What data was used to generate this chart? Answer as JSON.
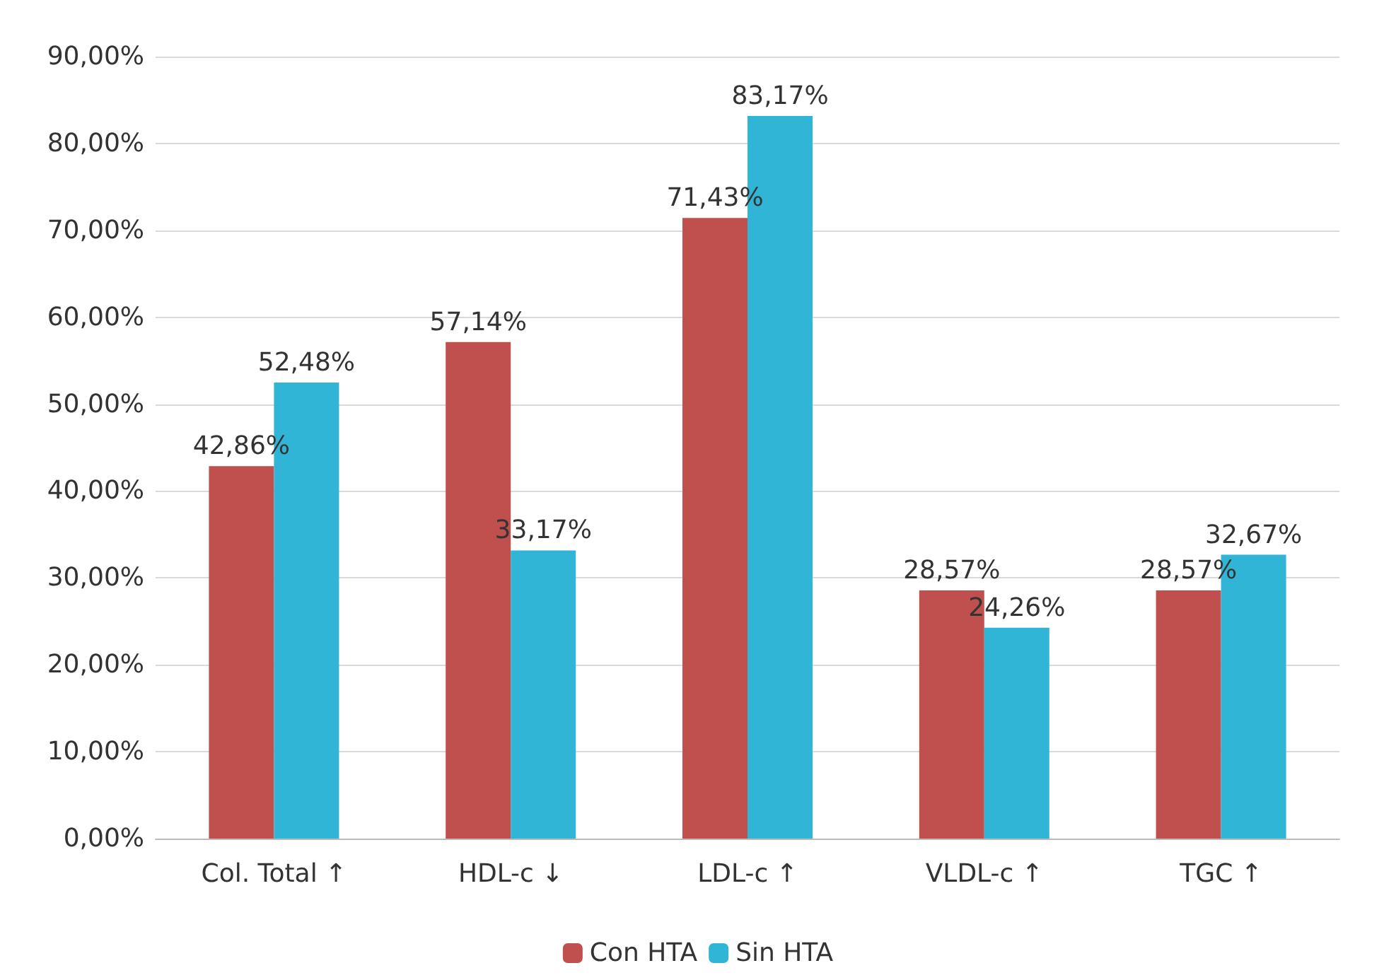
{
  "chart_data": {
    "type": "bar",
    "categories": [
      "Col. Total ↑",
      "HDL-c ↓",
      "LDL-c ↑",
      "VLDL-c ↑",
      "TGC ↑"
    ],
    "series": [
      {
        "name": "Con HTA",
        "color": "#c0504d",
        "values": [
          42.86,
          57.14,
          71.43,
          28.57,
          28.57
        ],
        "value_labels": [
          "42,86%",
          "57,14%",
          "71,43%",
          "28,57%",
          "28,57%"
        ]
      },
      {
        "name": "Sin HTA",
        "color": "#31b5d6",
        "values": [
          52.48,
          33.17,
          83.17,
          24.26,
          32.67
        ],
        "value_labels": [
          "52,48%",
          "33,17%",
          "83,17%",
          "24,26%",
          "32,67%"
        ]
      }
    ],
    "ylim": [
      0,
      90
    ],
    "yticks": [
      {
        "value": 0,
        "label": "0,00%"
      },
      {
        "value": 10,
        "label": "10,00%"
      },
      {
        "value": 20,
        "label": "20,00%"
      },
      {
        "value": 30,
        "label": "30,00%"
      },
      {
        "value": 40,
        "label": "40,00%"
      },
      {
        "value": 50,
        "label": "50,00%"
      },
      {
        "value": 60,
        "label": "60,00%"
      },
      {
        "value": 70,
        "label": "70,00%"
      },
      {
        "value": 80,
        "label": "80,00%"
      },
      {
        "value": 90,
        "label": "90,00%"
      }
    ],
    "grid": "y",
    "legend": "bottom"
  }
}
